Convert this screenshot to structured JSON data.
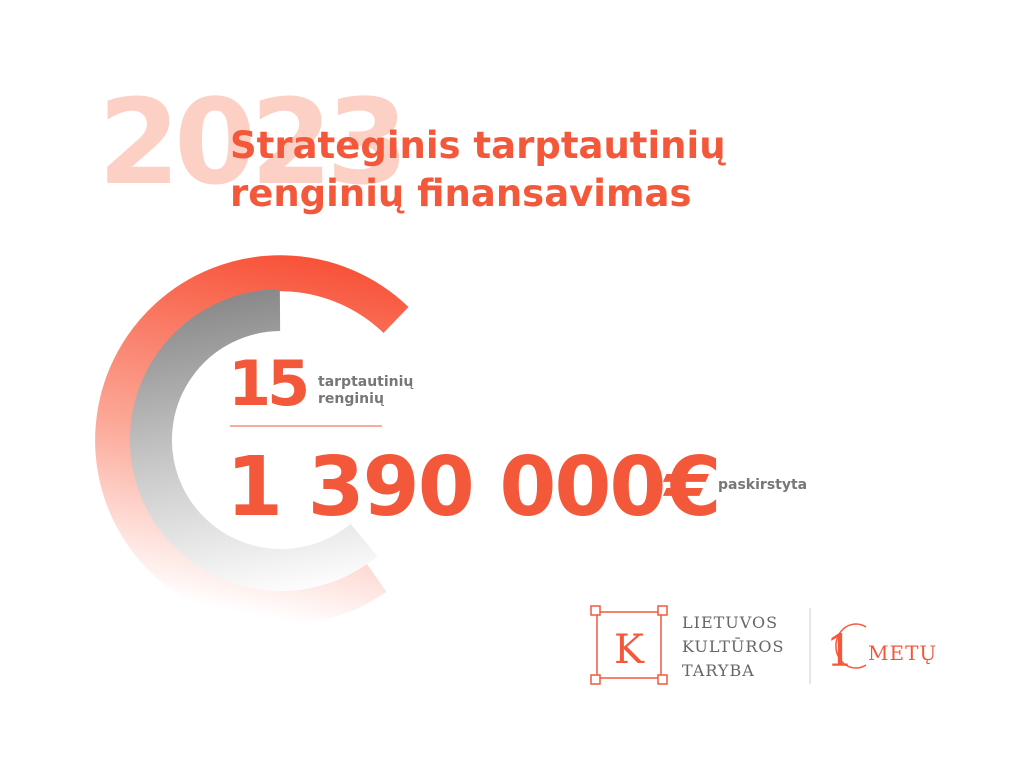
{
  "year": "2023",
  "title": [
    "Strateginis tarptautinių",
    "renginių finansavimas"
  ],
  "events": {
    "count": "15",
    "label": [
      "tarptautinių",
      "renginių"
    ]
  },
  "funding": {
    "amount": "1 390 000€",
    "label": "paskirstyta"
  },
  "logo": {
    "letter": "K",
    "lines": [
      "LIETUVOS",
      "KULTŪROS",
      "TARYBA"
    ],
    "anniversary_digit": "1",
    "anniversary_word": "METŲ"
  }
}
